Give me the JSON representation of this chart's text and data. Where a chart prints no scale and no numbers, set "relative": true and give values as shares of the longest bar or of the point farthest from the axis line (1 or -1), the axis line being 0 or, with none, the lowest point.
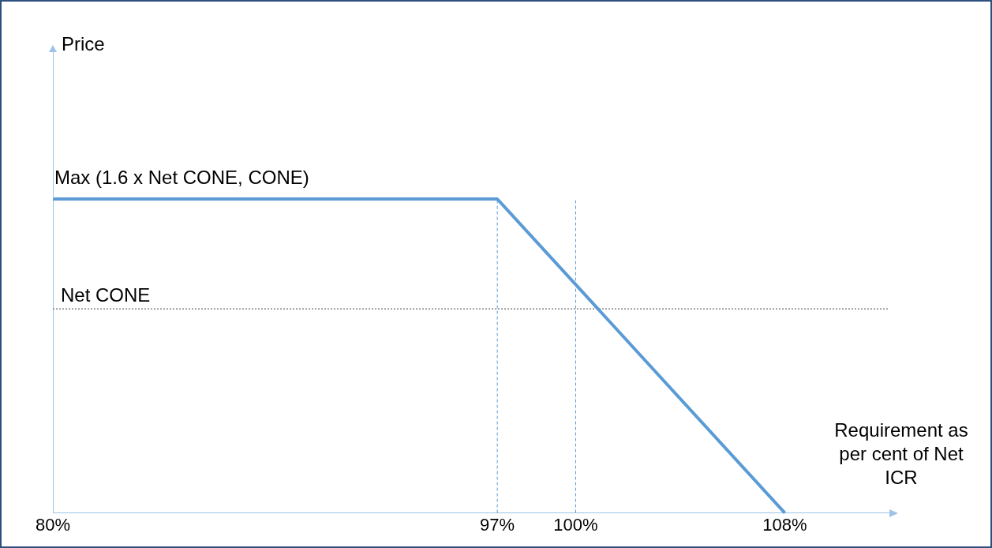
{
  "chart_data": {
    "type": "line",
    "relative": true,
    "xlabel": "Requirement as per cent of Net ICR",
    "x": [
      80,
      97,
      108
    ],
    "series": [
      {
        "color": "#5b9bd5",
        "values": [
          1,
          1,
          0
        ]
      }
    ],
    "xlim": [
      80,
      112
    ],
    "xticks": [
      {
        "value": 80,
        "label": "80%"
      },
      {
        "value": 97,
        "label": "97%"
      },
      {
        "value": 100,
        "label": "100%"
      },
      {
        "value": 108,
        "label": "108%"
      }
    ],
    "ref_lines": [
      {
        "axis": "x",
        "value": 97,
        "color": "#5b9bd5",
        "line_style": "dashed"
      },
      {
        "axis": "x",
        "value": 100,
        "color": "#5b9bd5",
        "line_style": "dashed"
      },
      {
        "axis": "y",
        "value": 0.65,
        "label": "Net CONE",
        "color": "#7f7f7f",
        "line_style": "dotted"
      }
    ],
    "annotations": [
      "Price",
      "Max (1.6 x Net CONE, CONE)"
    ],
    "grid": false,
    "legend": false,
    "marker": "none",
    "line_style": "solid"
  }
}
